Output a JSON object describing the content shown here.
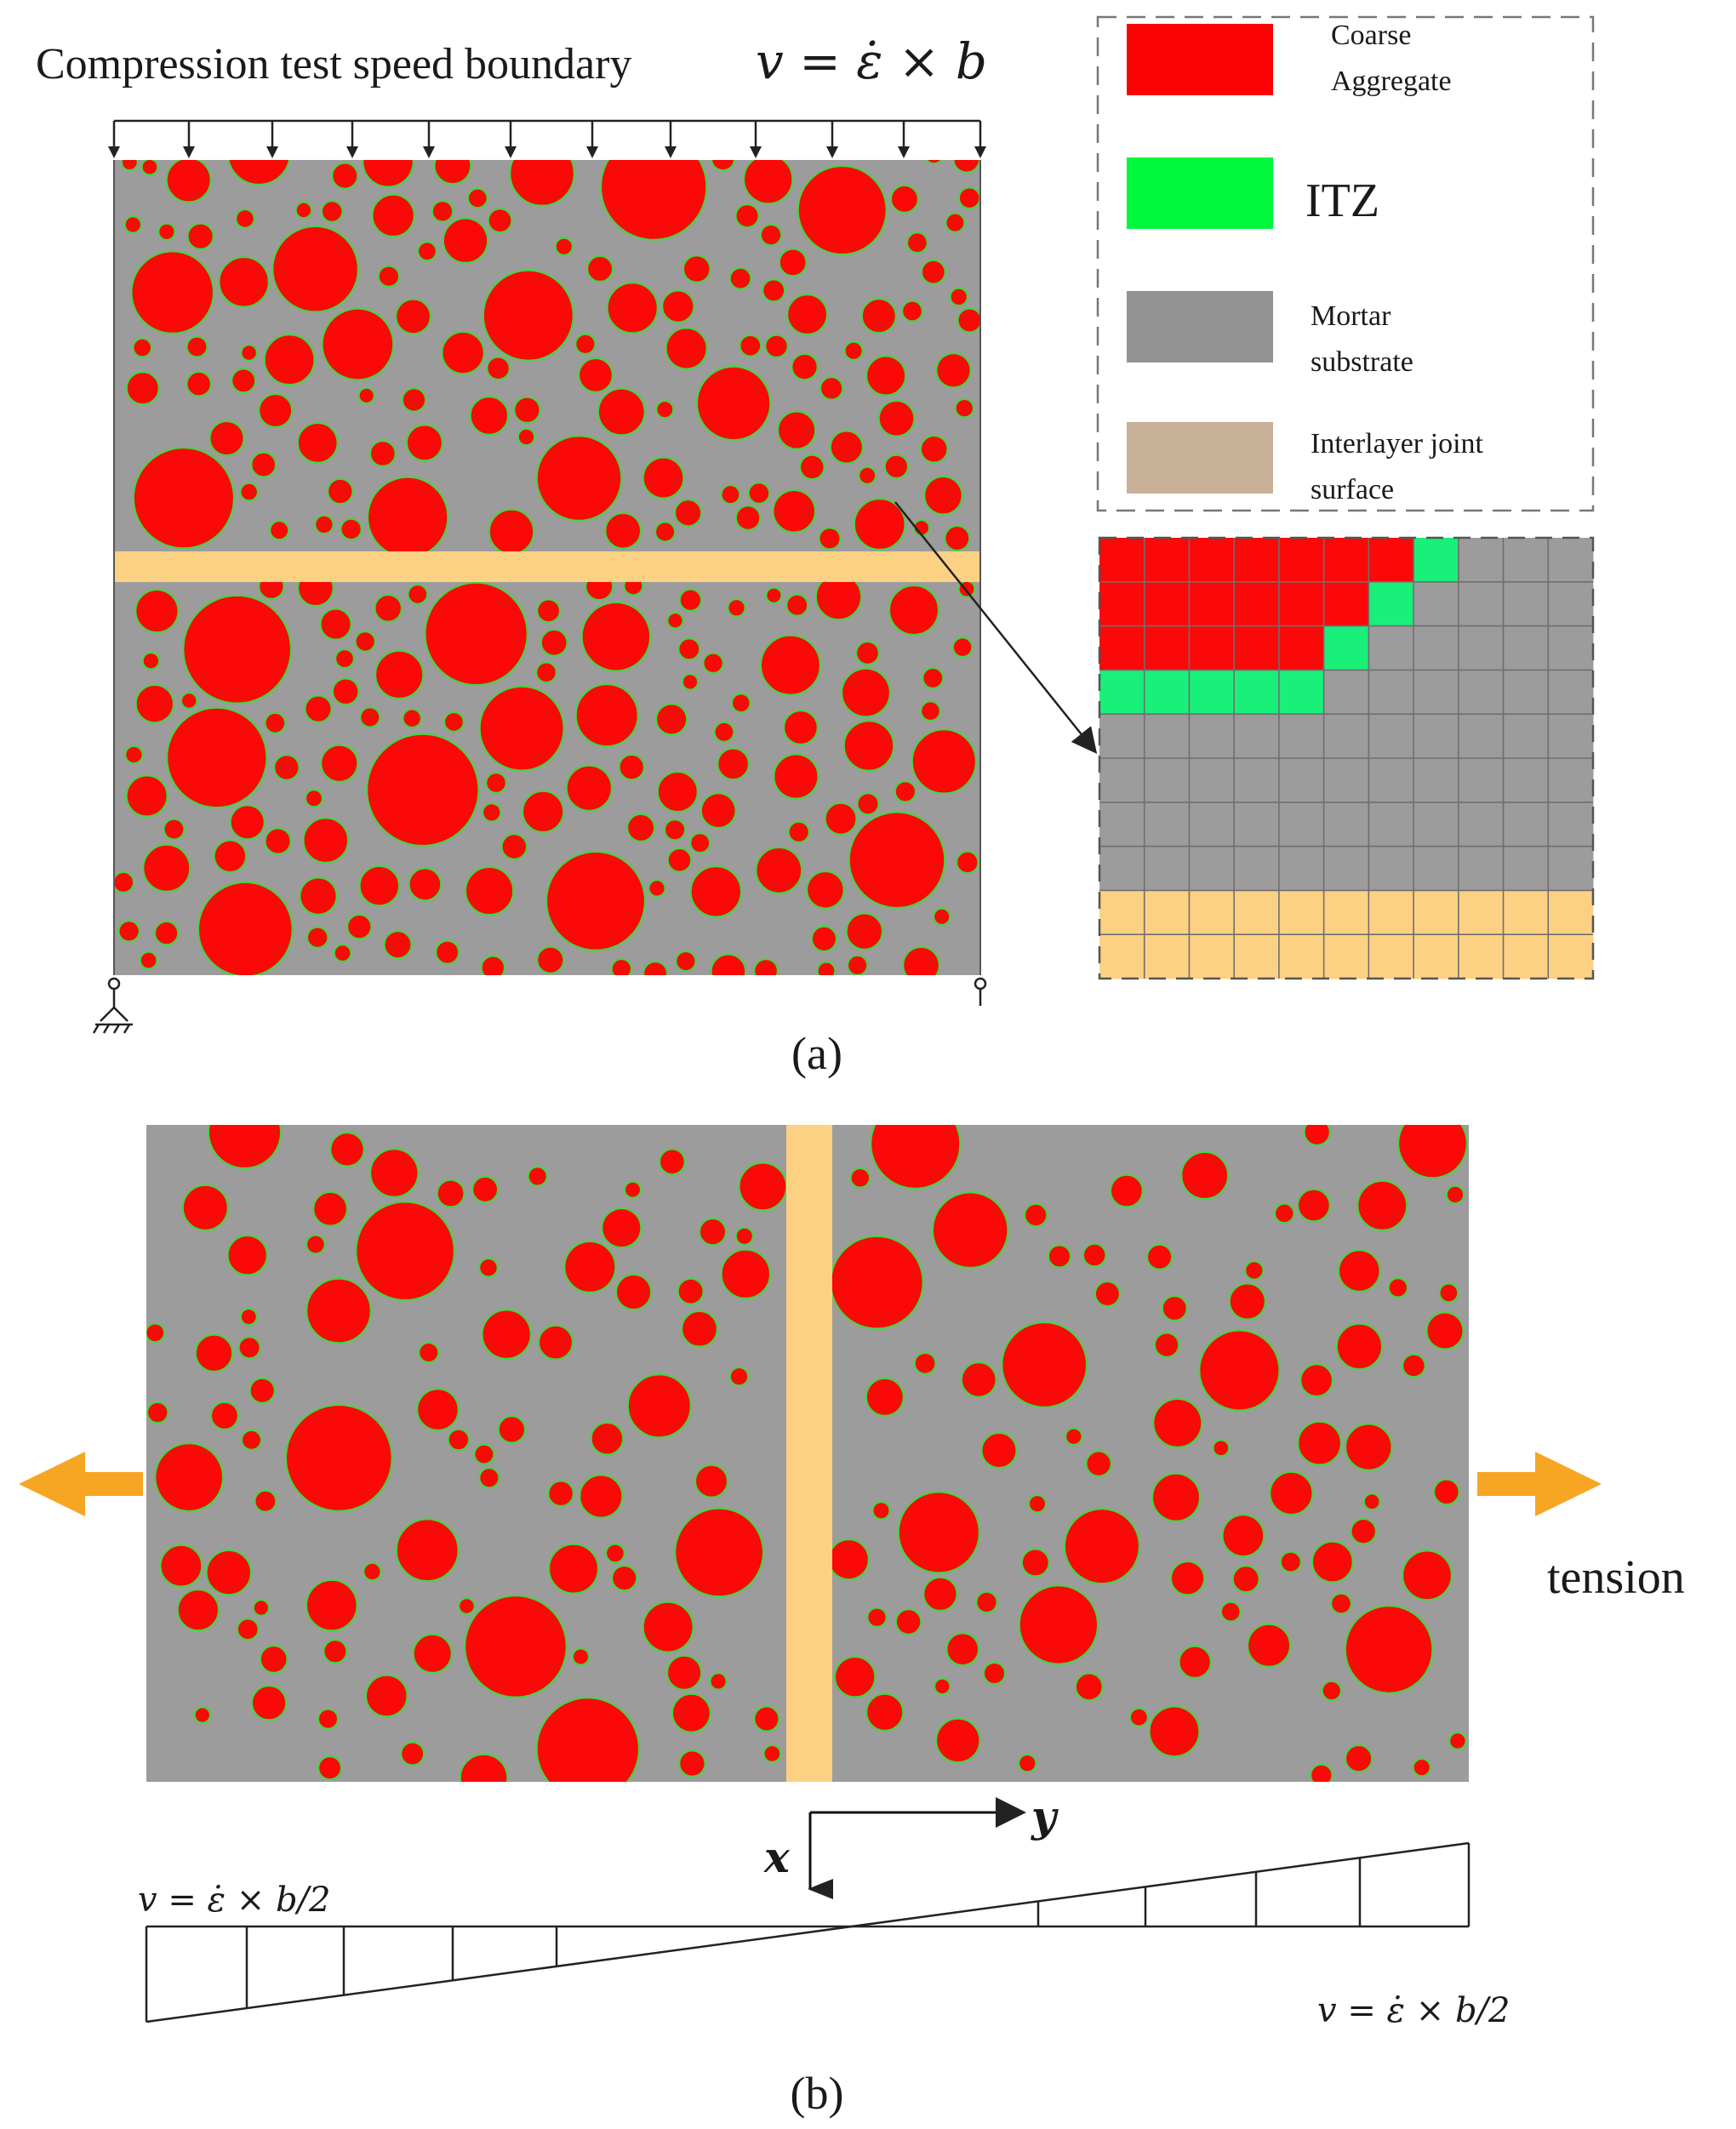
{
  "panel_a": {
    "title_text": "Compression test speed boundary",
    "title_formula": "v = ε̇ × b",
    "caption": "(a)",
    "legend": {
      "items": [
        {
          "line1": "Coarse",
          "line2": "Aggregate",
          "color": "#fb0205"
        },
        {
          "line1": "ITZ",
          "line2": "",
          "color": "#00f73c"
        },
        {
          "line1": "Mortar",
          "line2": "substrate",
          "color": "#939393"
        },
        {
          "line1": "Interlayer joint",
          "line2": "surface",
          "color": "#c8b098"
        }
      ]
    }
  },
  "panel_b": {
    "tension_label": "tension",
    "axis_y_label": "y",
    "axis_x_label": "x",
    "velocity_left": "v = ε̇ × b/2",
    "velocity_right": "v = ε̇ × b/2",
    "caption": "(b)"
  },
  "colors": {
    "aggregate": "#fb0808",
    "itz": "#3fd83f",
    "mortar": "#9c9c9c",
    "joint": "#fdd183",
    "arrow": "#f6a623"
  }
}
